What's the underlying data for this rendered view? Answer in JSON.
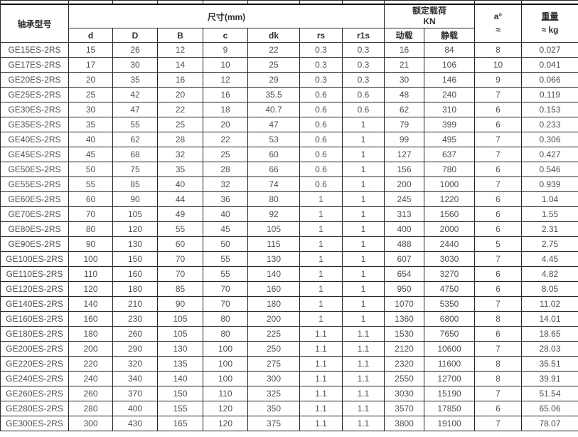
{
  "table": {
    "header": {
      "model": "轴承型号",
      "dimensions": "尺寸(mm)",
      "rated_load_line1": "额定载荷",
      "rated_load_line2": "KN",
      "angle_line1": "a°",
      "angle_line2": "≈",
      "weight_line1": "重量",
      "weight_line2": "≈ kg",
      "sub_columns": [
        "d",
        "D",
        "B",
        "c",
        "dk",
        "rs",
        "r1s",
        "动载",
        "静载"
      ]
    },
    "rows": [
      [
        "GE15ES-2RS",
        "15",
        "26",
        "12",
        "9",
        "22",
        "0.3",
        "0.3",
        "16",
        "84",
        "8",
        "0.027"
      ],
      [
        "GE17ES-2RS",
        "17",
        "30",
        "14",
        "10",
        "25",
        "0.3",
        "0.3",
        "21",
        "106",
        "10",
        "0.041"
      ],
      [
        "GE20ES-2RS",
        "20",
        "35",
        "16",
        "12",
        "29",
        "0.3",
        "0.3",
        "30",
        "146",
        "9",
        "0.066"
      ],
      [
        "GE25ES-2RS",
        "25",
        "42",
        "20",
        "16",
        "35.5",
        "0.6",
        "0.6",
        "48",
        "240",
        "7",
        "0.119"
      ],
      [
        "GE30ES-2RS",
        "30",
        "47",
        "22",
        "18",
        "40.7",
        "0.6",
        "0.6",
        "62",
        "310",
        "6",
        "0.153"
      ],
      [
        "GE35ES-2RS",
        "35",
        "55",
        "25",
        "20",
        "47",
        "0.6",
        "1",
        "79",
        "399",
        "6",
        "0.233"
      ],
      [
        "GE40ES-2RS",
        "40",
        "62",
        "28",
        "22",
        "53",
        "0.6",
        "1",
        "99",
        "495",
        "7",
        "0.306"
      ],
      [
        "GE45ES-2RS",
        "45",
        "68",
        "32",
        "25",
        "60",
        "0.6",
        "1",
        "127",
        "637",
        "7",
        "0.427"
      ],
      [
        "GE50ES-2RS",
        "50",
        "75",
        "35",
        "28",
        "66",
        "0.6",
        "1",
        "156",
        "780",
        "6",
        "0.546"
      ],
      [
        "GE55ES-2RS",
        "55",
        "85",
        "40",
        "32",
        "74",
        "0.6",
        "1",
        "200",
        "1000",
        "7",
        "0.939"
      ],
      [
        "GE60ES-2RS",
        "60",
        "90",
        "44",
        "36",
        "80",
        "1",
        "1",
        "245",
        "1220",
        "6",
        "1.04"
      ],
      [
        "GE70ES-2RS",
        "70",
        "105",
        "49",
        "40",
        "92",
        "1",
        "1",
        "313",
        "1560",
        "6",
        "1.55"
      ],
      [
        "GE80ES-2RS",
        "80",
        "120",
        "55",
        "45",
        "105",
        "1",
        "1",
        "400",
        "2000",
        "6",
        "2.31"
      ],
      [
        "GE90ES-2RS",
        "90",
        "130",
        "60",
        "50",
        "115",
        "1",
        "1",
        "488",
        "2440",
        "5",
        "2.75"
      ],
      [
        "GE100ES-2RS",
        "100",
        "150",
        "70",
        "55",
        "130",
        "1",
        "1",
        "607",
        "3030",
        "7",
        "4.45"
      ],
      [
        "GE110ES-2RS",
        "110",
        "160",
        "70",
        "55",
        "140",
        "1",
        "1",
        "654",
        "3270",
        "6",
        "4.82"
      ],
      [
        "GE120ES-2RS",
        "120",
        "180",
        "85",
        "70",
        "160",
        "1",
        "1",
        "950",
        "4750",
        "6",
        "8.05"
      ],
      [
        "GE140ES-2RS",
        "140",
        "210",
        "90",
        "70",
        "180",
        "1",
        "1",
        "1070",
        "5350",
        "7",
        "11.02"
      ],
      [
        "GE160ES-2RS",
        "160",
        "230",
        "105",
        "80",
        "200",
        "1",
        "1",
        "1360",
        "6800",
        "8",
        "14.01"
      ],
      [
        "GE180ES-2RS",
        "180",
        "260",
        "105",
        "80",
        "225",
        "1.1",
        "1.1",
        "1530",
        "7650",
        "6",
        "18.65"
      ],
      [
        "GE200ES-2RS",
        "200",
        "290",
        "130",
        "100",
        "250",
        "1.1",
        "1.1",
        "2120",
        "10600",
        "7",
        "28.03"
      ],
      [
        "GE220ES-2RS",
        "220",
        "320",
        "135",
        "100",
        "275",
        "1.1",
        "1.1",
        "2320",
        "11600",
        "8",
        "35.51"
      ],
      [
        "GE240ES-2RS",
        "240",
        "340",
        "140",
        "100",
        "300",
        "1.1",
        "1.1",
        "2550",
        "12700",
        "8",
        "39.91"
      ],
      [
        "GE260ES-2RS",
        "260",
        "370",
        "150",
        "110",
        "325",
        "1.1",
        "1.1",
        "3030",
        "15190",
        "7",
        "51.54"
      ],
      [
        "GE280ES-2RS",
        "280",
        "400",
        "155",
        "120",
        "350",
        "1.1",
        "1.1",
        "3570",
        "17850",
        "6",
        "65.06"
      ],
      [
        "GE300ES-2RS",
        "300",
        "430",
        "165",
        "120",
        "375",
        "1.1",
        "1.1",
        "3800",
        "19100",
        "7",
        "78.07"
      ]
    ]
  },
  "colors": {
    "border": "#262626",
    "header_text": "#2e2e2e",
    "cell_text": "#4f4f4f",
    "background": "#ffffff"
  }
}
